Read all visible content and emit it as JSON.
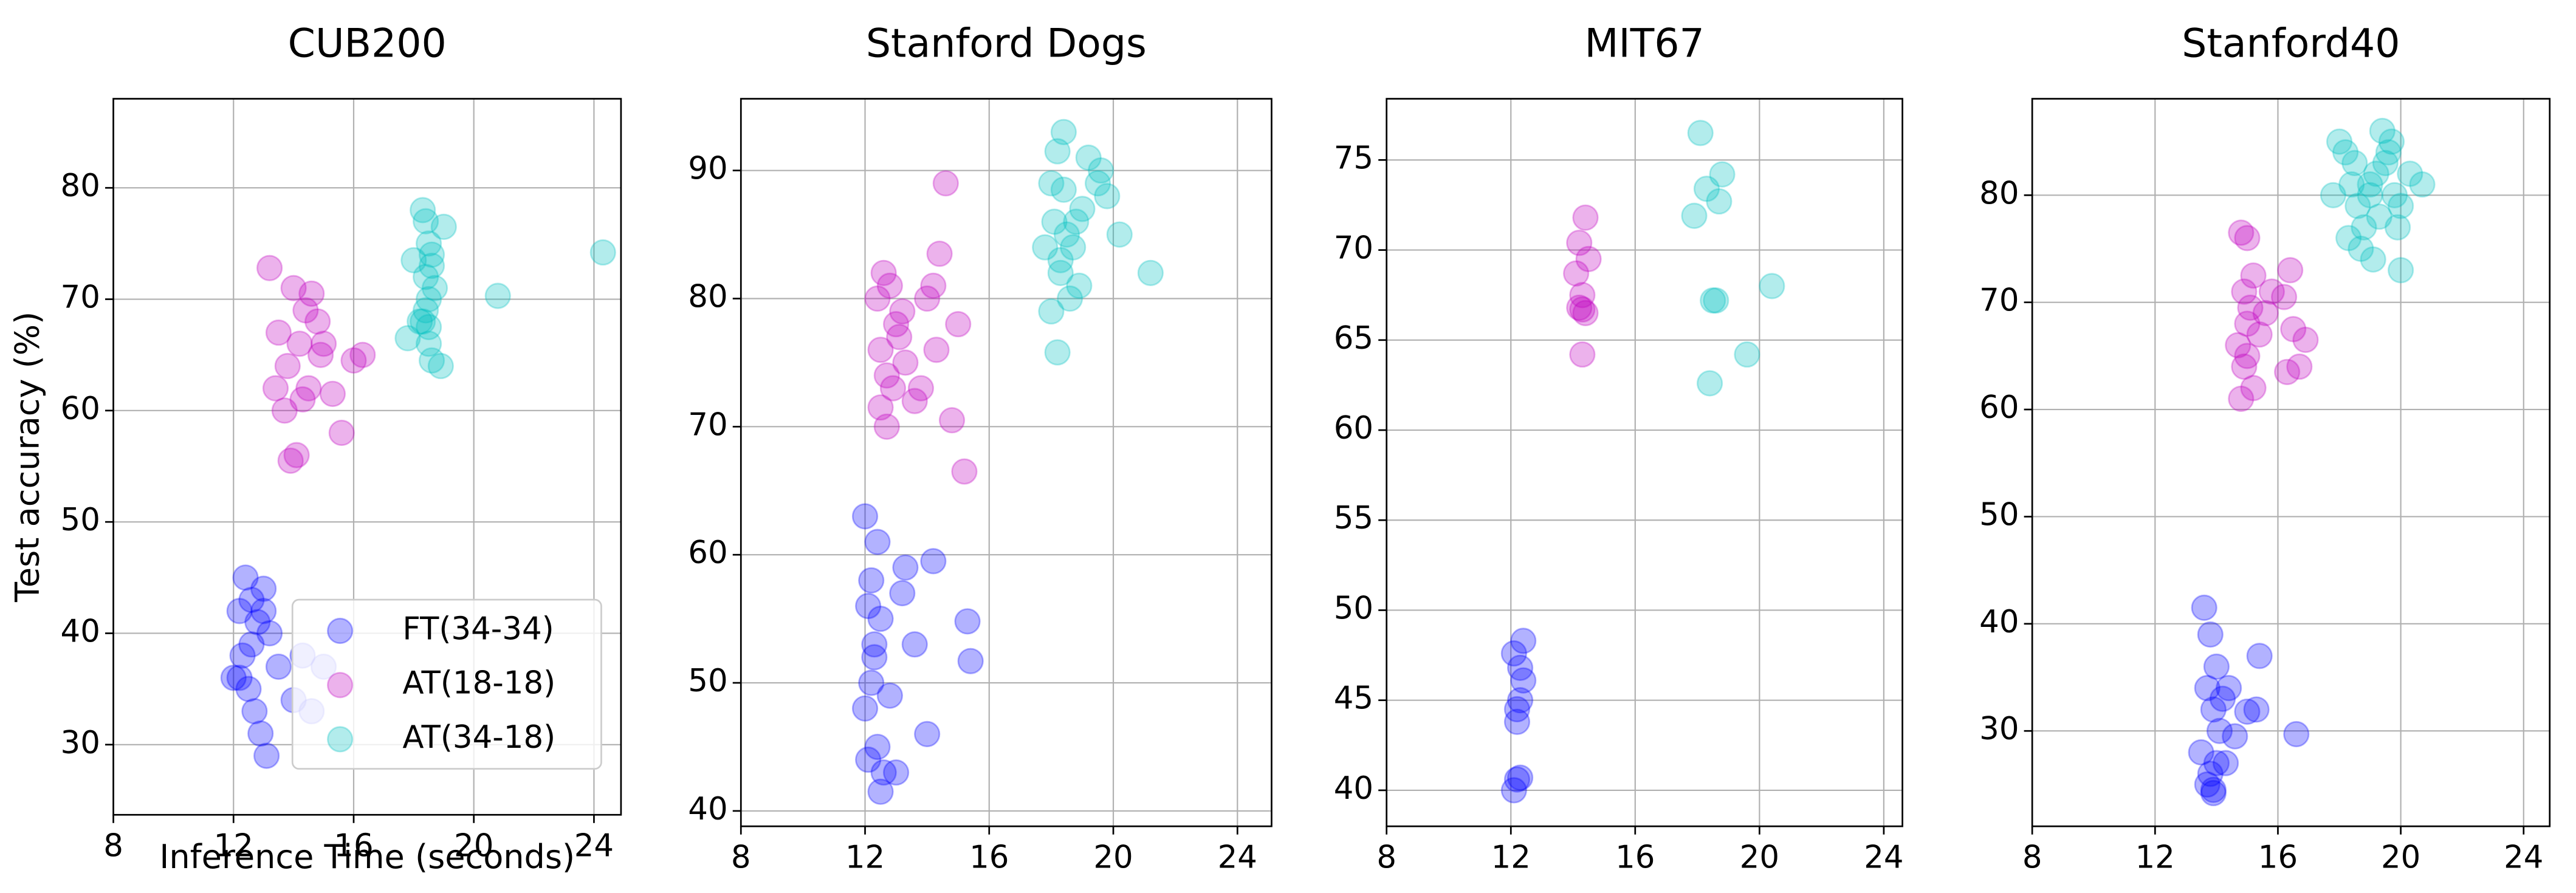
{
  "chart_data": [
    {
      "type": "scatter",
      "title": "CUB200",
      "x_label": "Inference Time (seconds)",
      "y_label": "Test accuracy (%)",
      "xlim": [
        8,
        24.9
      ],
      "ylim": [
        23.7,
        88
      ],
      "xticks": [
        8,
        12,
        16,
        20,
        24
      ],
      "yticks": [
        30,
        40,
        50,
        60,
        70,
        80
      ],
      "grid": true,
      "alpha": 0.3,
      "legend": "lower right",
      "series": [
        {
          "name": "FT(34-34)",
          "color": "#0000ff",
          "x": [
            12.0,
            12.2,
            12.4,
            12.6,
            12.8,
            13.0,
            13.2,
            12.3,
            12.5,
            12.7,
            12.9,
            13.1,
            12.2,
            12.6,
            13.0,
            13.5,
            14.0,
            14.3,
            15.0,
            14.6
          ],
          "values": [
            36,
            42,
            45,
            43,
            41,
            42,
            40,
            38,
            35,
            33,
            31,
            29,
            36,
            39,
            44,
            37,
            34,
            38,
            37,
            33
          ]
        },
        {
          "name": "AT(18-18)",
          "color": "#bf00bf",
          "x": [
            13.2,
            13.5,
            13.8,
            14.0,
            14.2,
            14.4,
            14.6,
            14.8,
            15.0,
            13.4,
            13.7,
            14.1,
            14.5,
            14.9,
            15.6,
            16.0,
            16.3,
            13.9,
            14.3,
            15.3
          ],
          "values": [
            72.8,
            67,
            64,
            71,
            66,
            69,
            70.5,
            68,
            66,
            62,
            60,
            56,
            62,
            65,
            58,
            64.5,
            65,
            55.5,
            61,
            61.5
          ]
        },
        {
          "name": "AT(34-18)",
          "color": "#00bfbf",
          "x": [
            17.8,
            18.0,
            18.3,
            18.4,
            18.5,
            18.6,
            18.4,
            18.5,
            18.7,
            18.3,
            18.5,
            18.6,
            18.4,
            19.0,
            18.9,
            18.2,
            20.8,
            24.3,
            18.6,
            18.5
          ],
          "values": [
            66.5,
            73.5,
            78,
            77,
            75,
            74,
            72,
            70,
            71,
            68,
            66,
            64.5,
            69,
            76.5,
            64,
            68,
            70.3,
            74.2,
            73,
            67.5
          ]
        }
      ]
    },
    {
      "type": "scatter",
      "title": "Stanford Dogs",
      "xlim": [
        8,
        25.1
      ],
      "ylim": [
        38.8,
        95.6
      ],
      "xticks": [
        8,
        12,
        16,
        20,
        24
      ],
      "yticks": [
        40,
        50,
        60,
        70,
        80,
        90
      ],
      "grid": true,
      "alpha": 0.3,
      "series": [
        {
          "color": "#0000ff",
          "x": [
            12.0,
            12.2,
            12.4,
            12.1,
            12.3,
            12.5,
            12.2,
            12.0,
            12.4,
            12.6,
            13.0,
            13.3,
            13.6,
            14.0,
            14.2,
            13.2,
            12.8,
            12.5,
            15.3,
            15.4,
            12.1,
            12.3
          ],
          "values": [
            63,
            58,
            61,
            56,
            53,
            55,
            50,
            48,
            45,
            43,
            43,
            59,
            53,
            46,
            59.5,
            57,
            49,
            41.5,
            54.8,
            51.7,
            44,
            52
          ]
        },
        {
          "color": "#bf00bf",
          "x": [
            12.4,
            12.6,
            12.8,
            13.0,
            13.2,
            12.5,
            12.7,
            12.9,
            13.1,
            13.3,
            13.6,
            14.0,
            14.2,
            14.4,
            14.6,
            14.3,
            14.8,
            15.0,
            15.2,
            13.8,
            12.5,
            12.7
          ],
          "values": [
            80,
            82,
            81,
            78,
            79,
            76,
            74,
            73,
            77,
            75,
            72,
            80,
            81,
            83.5,
            89,
            76,
            70.5,
            78,
            66.5,
            73,
            71.5,
            70
          ]
        },
        {
          "color": "#00bfbf",
          "x": [
            17.8,
            18.0,
            18.2,
            18.4,
            18.1,
            18.3,
            18.5,
            18.6,
            18.9,
            19.2,
            19.5,
            19.8,
            20.2,
            21.2,
            18.7,
            19.0,
            18.2,
            18.0,
            18.4,
            18.8,
            19.6,
            18.3
          ],
          "values": [
            84,
            89,
            91.5,
            93,
            86,
            83,
            85,
            80,
            81,
            91,
            89,
            88,
            85,
            82,
            84,
            87,
            75.8,
            79,
            88.5,
            86,
            90,
            82
          ]
        }
      ]
    },
    {
      "type": "scatter",
      "title": "MIT67",
      "xlim": [
        8,
        24.6
      ],
      "ylim": [
        38,
        78.4
      ],
      "xticks": [
        8,
        12,
        16,
        20,
        24
      ],
      "yticks": [
        40,
        45,
        50,
        55,
        60,
        65,
        70,
        75
      ],
      "grid": true,
      "alpha": 0.3,
      "series": [
        {
          "color": "#0000ff",
          "x": [
            12.1,
            12.2,
            12.3,
            12.2,
            12.3,
            12.4,
            12.1,
            12.4,
            12.2,
            12.3
          ],
          "values": [
            40,
            40.6,
            40.7,
            43.8,
            45,
            46.1,
            47.6,
            48.3,
            44.5,
            46.8
          ]
        },
        {
          "color": "#bf00bf",
          "x": [
            14.4,
            14.2,
            14.1,
            14.5,
            14.3,
            14.2,
            14.4,
            14.3,
            14.3
          ],
          "values": [
            71.8,
            70.4,
            68.7,
            69.5,
            67.5,
            66.8,
            66.5,
            64.2,
            66.7
          ]
        },
        {
          "color": "#00bfbf",
          "x": [
            18.1,
            18.3,
            18.8,
            18.7,
            17.9,
            18.6,
            18.5,
            20.4,
            19.6,
            18.4
          ],
          "values": [
            76.5,
            73.4,
            74.2,
            72.7,
            71.9,
            67.2,
            67.2,
            68,
            64.2,
            62.6
          ]
        }
      ]
    },
    {
      "type": "scatter",
      "title": "Stanford40",
      "xlim": [
        8,
        24.85
      ],
      "ylim": [
        21.1,
        89
      ],
      "xticks": [
        8,
        12,
        16,
        20,
        24
      ],
      "yticks": [
        30,
        40,
        50,
        60,
        70,
        80
      ],
      "grid": true,
      "alpha": 0.3,
      "series": [
        {
          "color": "#0000ff",
          "x": [
            13.6,
            13.8,
            14.0,
            13.7,
            13.9,
            14.1,
            13.5,
            14.2,
            14.4,
            13.8,
            13.9,
            14.6,
            15.0,
            15.4,
            15.3,
            16.6,
            14.3,
            13.7,
            14.0,
            13.9
          ],
          "values": [
            41.5,
            39,
            36,
            34,
            32,
            30,
            28,
            33,
            34,
            26,
            24.5,
            29.5,
            31.8,
            37,
            32,
            29.7,
            27,
            25,
            27,
            24.2
          ]
        },
        {
          "color": "#bf00bf",
          "x": [
            14.8,
            15.0,
            15.2,
            14.9,
            15.1,
            15.0,
            14.7,
            14.9,
            15.2,
            15.4,
            15.6,
            15.8,
            16.2,
            16.4,
            16.5,
            16.7,
            16.9,
            14.8,
            15.0,
            16.3
          ],
          "values": [
            76.5,
            76,
            72.5,
            71,
            69.5,
            68,
            66,
            64,
            62,
            67,
            69,
            71,
            70.5,
            73,
            67.5,
            64,
            66.5,
            61,
            65,
            63.5
          ]
        },
        {
          "color": "#00bfbf",
          "x": [
            17.8,
            18.0,
            18.2,
            18.4,
            18.6,
            18.8,
            19.0,
            19.2,
            19.4,
            19.6,
            19.8,
            20.0,
            20.3,
            20.7,
            18.3,
            18.7,
            19.1,
            19.3,
            19.5,
            19.7,
            20.0,
            18.5,
            19.0,
            19.9
          ],
          "values": [
            80,
            85,
            84,
            81,
            79,
            77,
            80,
            82,
            86,
            84,
            80,
            79,
            82,
            81,
            76,
            75,
            74,
            78,
            83,
            85,
            73,
            83,
            81,
            77
          ]
        }
      ]
    }
  ]
}
